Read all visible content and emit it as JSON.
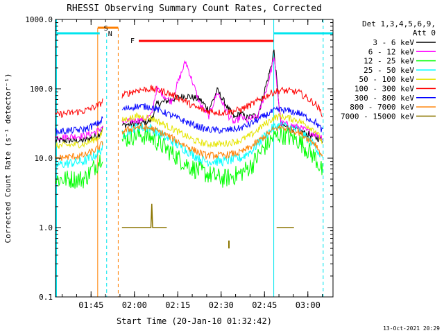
{
  "chart_data": {
    "type": "line",
    "title": "RHESSI Observing Summary Count Rates, Corrected",
    "xlabel": "Start Time (20-Jan-10 01:32:42)",
    "ylabel": "Corrected Count Rate (s⁻¹ detector⁻¹)",
    "x_unit": "minutes after 01:32:42",
    "xlim": [
      0,
      96
    ],
    "ylim": [
      0.1,
      1000
    ],
    "yscale": "log",
    "x_ticks": [
      "01:45",
      "02:00",
      "02:15",
      "02:30",
      "02:45",
      "03:00"
    ],
    "y_ticks": [
      "0.1",
      "1.0",
      "10.0",
      "100.0",
      "1000.0"
    ],
    "legend_title": [
      "Det 1,3,4,5,6,9,",
      "Att 0"
    ],
    "legend_position": "right",
    "flags": [
      {
        "label": "S",
        "start": 14.6,
        "end": 21.7,
        "color": "#ff7f00"
      },
      {
        "label": "N",
        "start": 17.7,
        "end": 17.7,
        "color": "#00e5ee"
      },
      {
        "label": "F",
        "start": 28.8,
        "end": 75.5,
        "color": "#ff0000"
      }
    ],
    "series": [
      {
        "name": "3 - 6 keV",
        "color": "#000000",
        "x": [
          0,
          10,
          15,
          16.5,
          23,
          30,
          33,
          35,
          40,
          45,
          50,
          53,
          56,
          60,
          62,
          64,
          66,
          70,
          73,
          75,
          75.5,
          78,
          84,
          90,
          92.6
        ],
        "y": [
          18,
          18,
          22,
          28,
          30,
          32,
          35,
          60,
          70,
          80,
          70,
          50,
          95,
          50,
          38,
          45,
          38,
          42,
          120,
          250,
          380,
          30,
          25,
          20,
          18
        ]
      },
      {
        "name": "6 - 12 keV",
        "color": "#ff00ff",
        "x": [
          0,
          10,
          15,
          16.5,
          23,
          30,
          33,
          35,
          40,
          45,
          50,
          53,
          56,
          60,
          62,
          64,
          66,
          70,
          73,
          75,
          75.5,
          78,
          84,
          90,
          92.6
        ],
        "y": [
          20,
          21,
          25,
          30,
          33,
          36,
          40,
          100,
          65,
          250,
          60,
          40,
          90,
          40,
          32,
          40,
          35,
          40,
          100,
          220,
          300,
          32,
          28,
          22,
          20
        ]
      },
      {
        "name": "12 - 25 keV",
        "color": "#00ff00",
        "x": [
          0,
          10,
          15,
          16.5,
          23,
          28,
          33,
          38,
          44,
          48,
          52,
          58,
          64,
          68,
          72,
          75.5,
          78,
          84,
          90,
          92.6
        ],
        "y": [
          5,
          5,
          9,
          12,
          18,
          22,
          20,
          14,
          9,
          7,
          6,
          5,
          6,
          8,
          14,
          20,
          22,
          18,
          10,
          6
        ]
      },
      {
        "name": "25 - 50 keV",
        "color": "#00ffff",
        "x": [
          0,
          10,
          15,
          16.5,
          23,
          28,
          33,
          38,
          44,
          48,
          52,
          58,
          64,
          68,
          72,
          75.5,
          78,
          84,
          90,
          92.6
        ],
        "y": [
          8,
          9,
          12,
          15,
          22,
          28,
          27,
          20,
          14,
          11,
          9,
          9,
          10,
          13,
          20,
          28,
          30,
          25,
          15,
          9
        ]
      },
      {
        "name": "50 - 100 keV",
        "color": "#e5e500",
        "x": [
          0,
          10,
          15,
          16.5,
          23,
          28,
          33,
          38,
          44,
          48,
          52,
          58,
          64,
          68,
          72,
          75.5,
          78,
          84,
          90,
          92.6
        ],
        "y": [
          15,
          16,
          20,
          25,
          35,
          40,
          38,
          30,
          22,
          18,
          16,
          16,
          18,
          22,
          30,
          38,
          40,
          35,
          25,
          16
        ]
      },
      {
        "name": "100 - 300 keV",
        "color": "#ff0000",
        "x": [
          0,
          10,
          15,
          16.5,
          23,
          28,
          33,
          38,
          44,
          48,
          52,
          58,
          64,
          68,
          72,
          75.5,
          78,
          84,
          90,
          92.6
        ],
        "y": [
          42,
          48,
          58,
          68,
          80,
          95,
          100,
          90,
          70,
          55,
          48,
          45,
          50,
          60,
          75,
          90,
          95,
          90,
          60,
          42
        ]
      },
      {
        "name": "300 - 800 keV",
        "color": "#0000ff",
        "x": [
          0,
          10,
          15,
          16.5,
          23,
          28,
          33,
          38,
          44,
          48,
          52,
          58,
          64,
          68,
          72,
          75.5,
          78,
          84,
          90,
          92.6
        ],
        "y": [
          24,
          26,
          32,
          38,
          50,
          56,
          55,
          45,
          35,
          30,
          26,
          25,
          27,
          32,
          40,
          48,
          50,
          45,
          33,
          24
        ]
      },
      {
        "name": "800 - 7000 keV",
        "color": "#ff7f00",
        "x": [
          0,
          10,
          15,
          16.5,
          23,
          28,
          33,
          38,
          44,
          48,
          52,
          58,
          64,
          68,
          72,
          75.5,
          78,
          84,
          90,
          92.6
        ],
        "y": [
          10,
          11,
          14,
          17,
          24,
          28,
          27,
          22,
          16,
          13,
          11,
          11,
          12,
          15,
          20,
          26,
          28,
          24,
          16,
          10
        ]
      },
      {
        "name": "7000 - 15000 keV",
        "color": "#8b7500",
        "x": [
          23,
          30,
          33,
          33.3,
          33.6,
          36,
          38.5
        ],
        "y": [
          1,
          1,
          1,
          2.2,
          1,
          1,
          1
        ]
      }
    ]
  },
  "footer": "13-Oct-2021 20:29"
}
